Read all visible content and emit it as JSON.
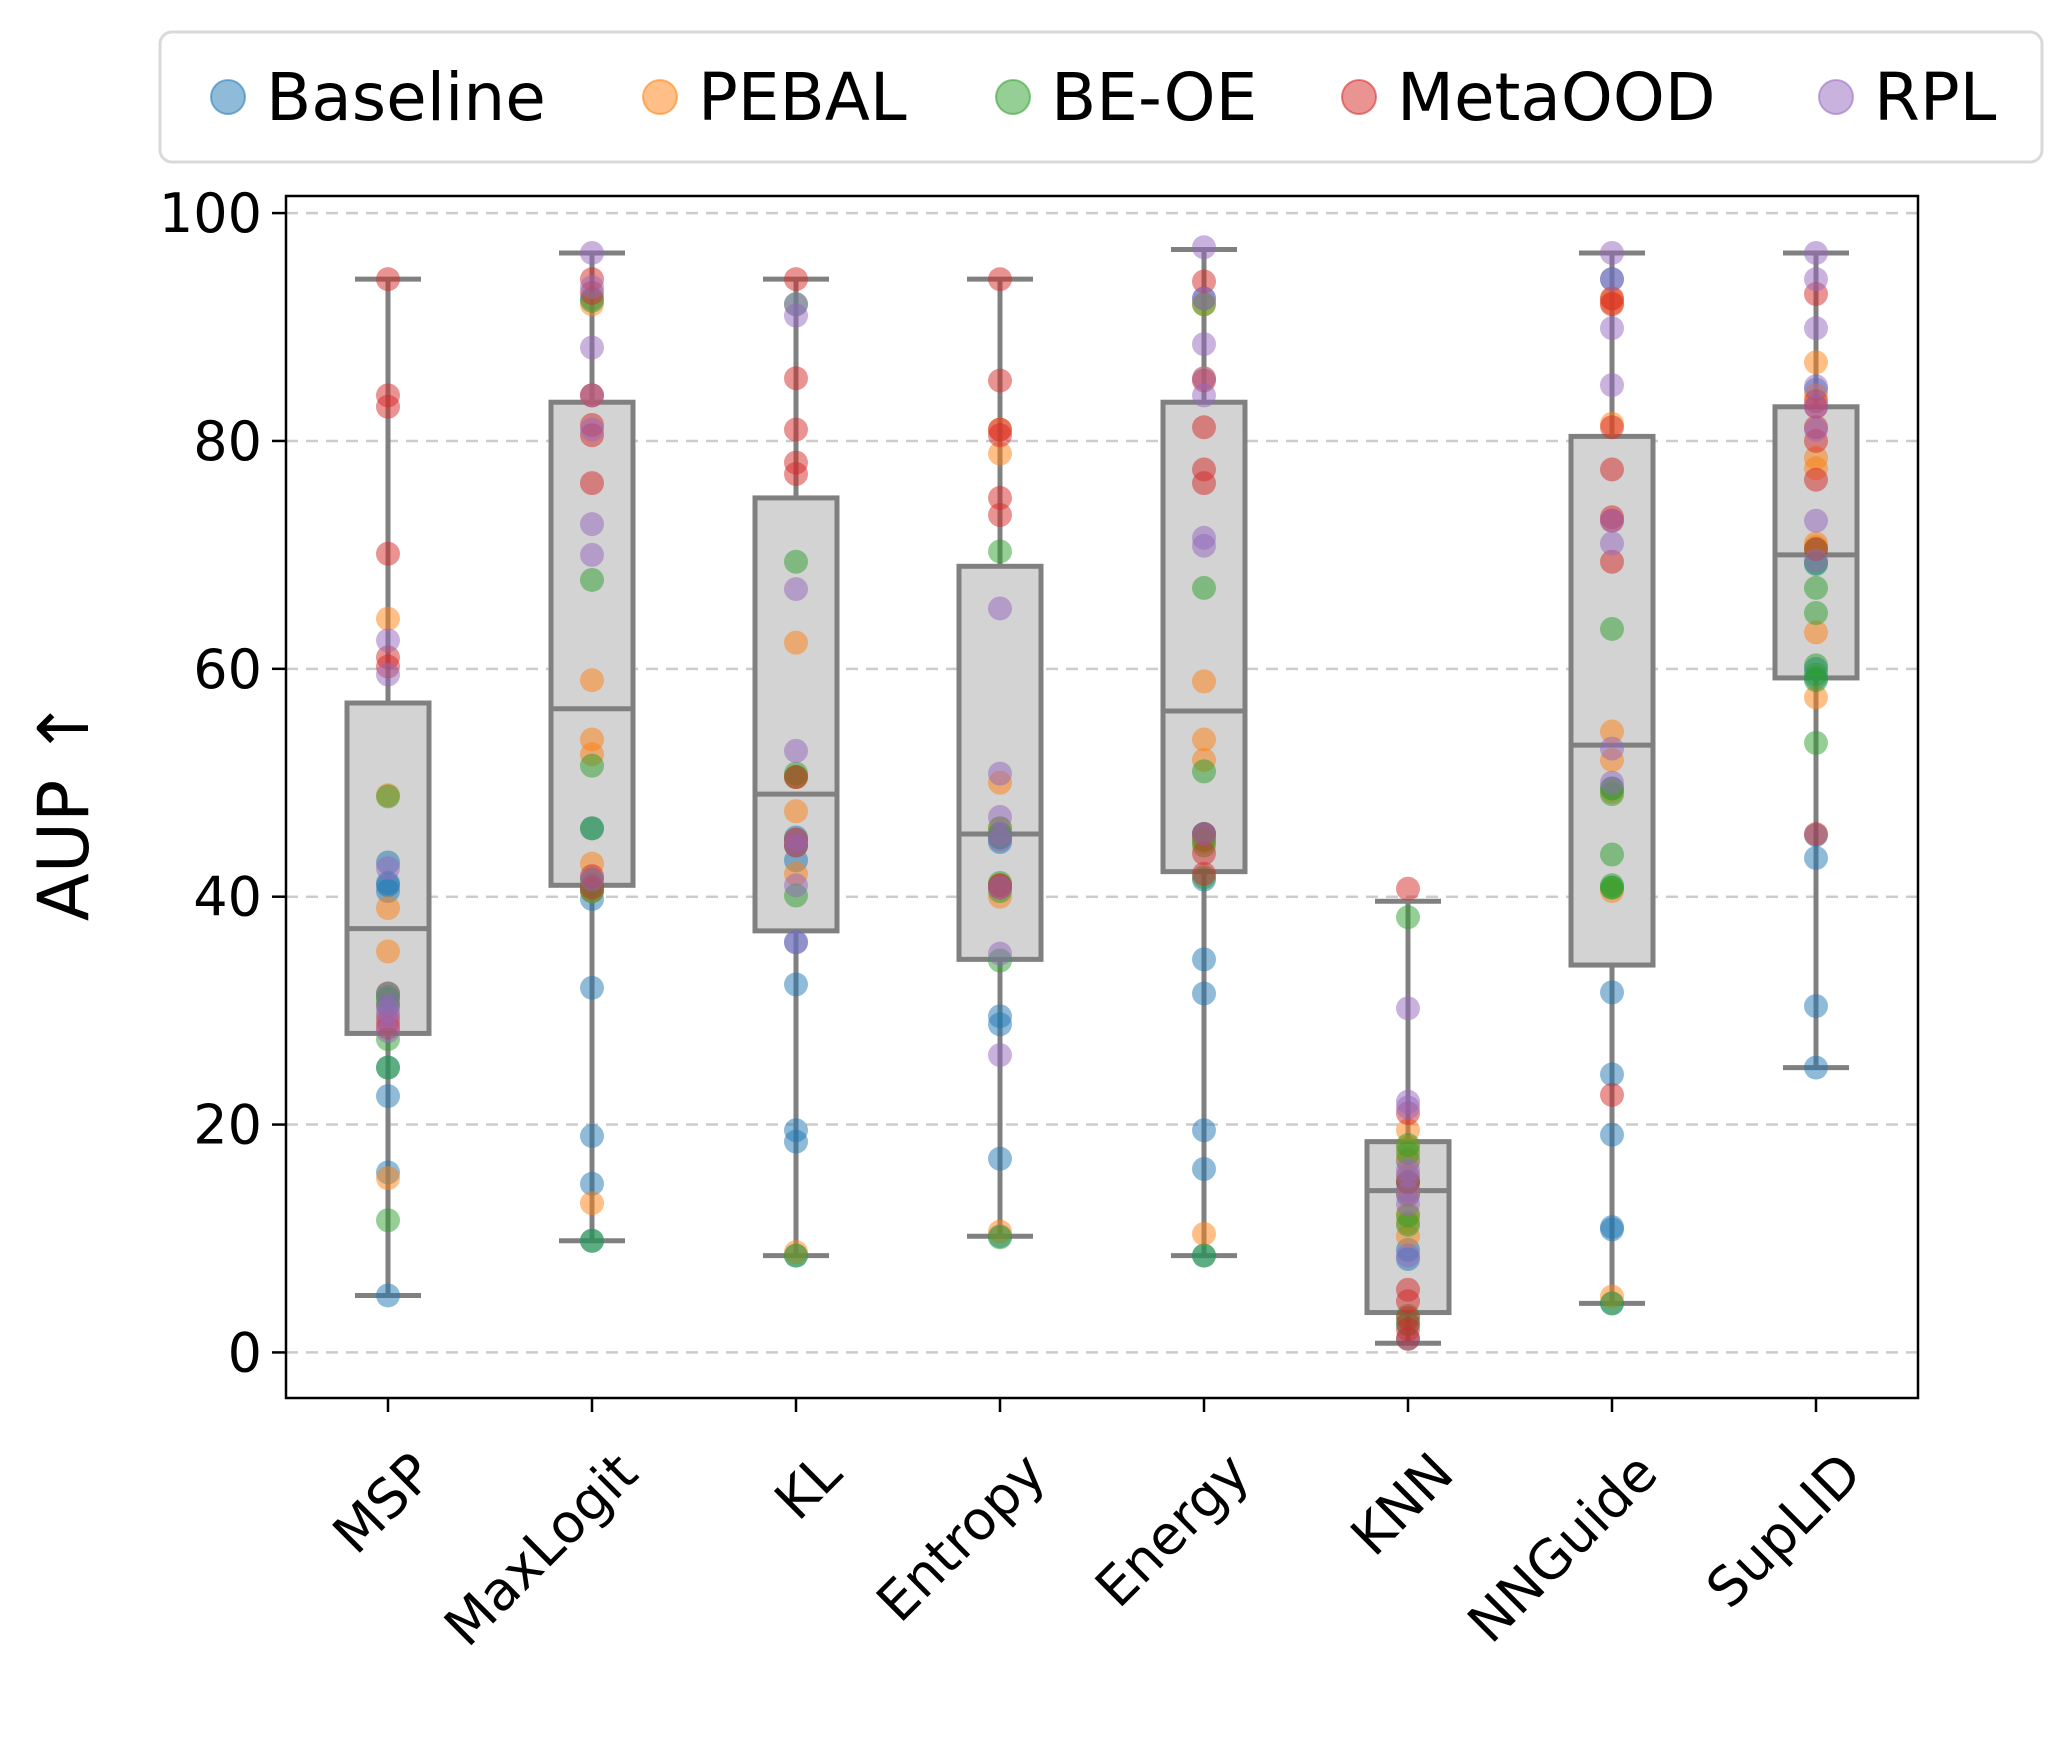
{
  "chart_data": {
    "type": "box",
    "title": "",
    "xlabel": "",
    "ylabel": "AUP ↑",
    "ylim": [
      -4,
      101.5
    ],
    "yticks": [
      0,
      20,
      40,
      60,
      80,
      100
    ],
    "grid": "horizontal-dashed",
    "legend_position": "top",
    "categories": [
      "MSP",
      "MaxLogit",
      "KL",
      "Entropy",
      "Energy",
      "KNN",
      "NNGuide",
      "SupLID"
    ],
    "boxes": [
      {
        "min": 5,
        "q1": 28,
        "median": 37.2,
        "q3": 57,
        "max": 94.2
      },
      {
        "min": 9.8,
        "q1": 41,
        "median": 56.5,
        "q3": 83.4,
        "max": 96.5
      },
      {
        "min": 8.5,
        "q1": 37,
        "median": 49,
        "q3": 75,
        "max": 94.2
      },
      {
        "min": 10.2,
        "q1": 34.5,
        "median": 45.5,
        "q3": 69,
        "max": 94.2
      },
      {
        "min": 8.5,
        "q1": 42.2,
        "median": 56.3,
        "q3": 83.4,
        "max": 96.8
      },
      {
        "min": 0.8,
        "q1": 3.5,
        "median": 14.2,
        "q3": 18.5,
        "max": 39.6
      },
      {
        "min": 4.3,
        "q1": 34,
        "median": 53.3,
        "q3": 80.4,
        "max": 96.5
      },
      {
        "min": 25,
        "q1": 59.2,
        "median": 70,
        "q3": 83,
        "max": 96.5
      }
    ],
    "series": [
      {
        "name": "Baseline",
        "color": "#1f77b4",
        "values": [
          [
            5,
            15.8,
            22.5,
            25,
            41,
            40.5,
            43,
            41.2
          ],
          [
            9.8,
            14.8,
            19,
            32,
            39.8,
            40.5,
            46,
            92.5
          ],
          [
            8.5,
            18.5,
            19.5,
            32.3,
            36,
            43.2,
            44.5,
            45.2
          ],
          [
            10.2,
            17,
            28.8,
            29.5,
            44.8,
            45.2,
            45.5,
            41
          ],
          [
            8.5,
            16.1,
            19.5,
            31.5,
            34.5,
            41.5,
            45.5,
            92.5
          ],
          [
            1.2,
            2.5,
            8.2,
            9,
            13.8,
            15,
            16.8,
            14.2
          ],
          [
            4.3,
            10.8,
            11,
            19.1,
            24.4,
            31.6,
            49.5,
            94.2
          ],
          [
            25,
            30.4,
            43.4,
            45.4,
            59.2,
            69.2,
            84.5,
            60
          ]
        ]
      },
      {
        "name": "PEBAL",
        "color": "#ff7f0e",
        "values": [
          [
            15.3,
            35.2,
            39,
            48.9,
            64.4,
            31.5,
            29.5,
            30.5
          ],
          [
            13.1,
            42.9,
            52.5,
            53.8,
            59,
            92,
            84,
            40.5
          ],
          [
            8.8,
            42,
            47.5,
            62.3,
            50.5,
            45,
            44.5,
            45
          ],
          [
            10.6,
            40,
            41,
            50,
            78.9,
            46,
            81,
            45.5
          ],
          [
            10.4,
            44.8,
            52,
            53.8,
            58.9,
            92,
            85.5,
            45
          ],
          [
            10.2,
            12.2,
            11.4,
            14,
            15.5,
            17,
            18,
            19.5
          ],
          [
            4.9,
            49.2,
            52,
            54.5,
            92.1,
            92.5,
            81.5,
            40.5
          ],
          [
            57.5,
            63.2,
            70.7,
            77.6,
            86.9,
            78.5,
            71,
            84
          ]
        ]
      },
      {
        "name": "BE-OE",
        "color": "#2ca02c",
        "values": [
          [
            11.6,
            25,
            27.5,
            31,
            48.8,
            31.2,
            30.5,
            31.5
          ],
          [
            9.8,
            46,
            51.5,
            67.8,
            92.3,
            40.5,
            41.5,
            41
          ],
          [
            8.5,
            40.1,
            50.8,
            69.4,
            92,
            44.5,
            45,
            50.5
          ],
          [
            10.1,
            34.4,
            41.2,
            45.2,
            70.3,
            45.5,
            46,
            40.5
          ],
          [
            8.5,
            41.7,
            45,
            51,
            67.1,
            92,
            45.5,
            44.5
          ],
          [
            2.5,
            3.2,
            11.2,
            18.2,
            38.2,
            15,
            17.5,
            12
          ],
          [
            4.3,
            40.8,
            43.7,
            49.5,
            63.5,
            41,
            40.8,
            49
          ],
          [
            53.5,
            59.5,
            64.9,
            67.1,
            60.3,
            69.3,
            70.5,
            59
          ]
        ]
      },
      {
        "name": "MetaOOD",
        "color": "#d62728",
        "values": [
          [
            29,
            60.2,
            61,
            70.1,
            83,
            84,
            94.2,
            28.5
          ],
          [
            40.8,
            41.8,
            76.3,
            80.5,
            81.4,
            84,
            94.2,
            93
          ],
          [
            44.5,
            77.1,
            78.1,
            81,
            85.5,
            94.2,
            45,
            50.5
          ],
          [
            73.5,
            75,
            80.5,
            81,
            85.3,
            94.2,
            41,
            40.8
          ],
          [
            43.8,
            76.3,
            77.5,
            81.2,
            85.3,
            94,
            45.5,
            42
          ],
          [
            1.2,
            4.5,
            5.5,
            14.9,
            21,
            40.7,
            2,
            3
          ],
          [
            22.6,
            69.4,
            73,
            73.3,
            77.5,
            81.2,
            92.5,
            92
          ],
          [
            45.5,
            76.6,
            80,
            81.2,
            83.5,
            92.9,
            70.5,
            83
          ]
        ]
      },
      {
        "name": "RPL",
        "color": "#9467bd",
        "values": [
          [
            30.5,
            59.5,
            62.5,
            42.5,
            31.5,
            30,
            29.5,
            28.2
          ],
          [
            70,
            72.7,
            88.2,
            93.5,
            96.5,
            84,
            81,
            41.5
          ],
          [
            36,
            52.8,
            67,
            91,
            92,
            45,
            44.5,
            41
          ],
          [
            26.1,
            35,
            47,
            50.8,
            65.3,
            45.5,
            45,
            40.8
          ],
          [
            70.8,
            71.5,
            84,
            85.5,
            88.5,
            97,
            92.5,
            45.5
          ],
          [
            8.5,
            15.5,
            21.5,
            22,
            30.2,
            14,
            16,
            13
          ],
          [
            71,
            84.9,
            89.9,
            94.2,
            96.5,
            73,
            53,
            50
          ],
          [
            73,
            84.8,
            89.9,
            94.2,
            96.5,
            81,
            83,
            69.5
          ]
        ]
      }
    ]
  }
}
